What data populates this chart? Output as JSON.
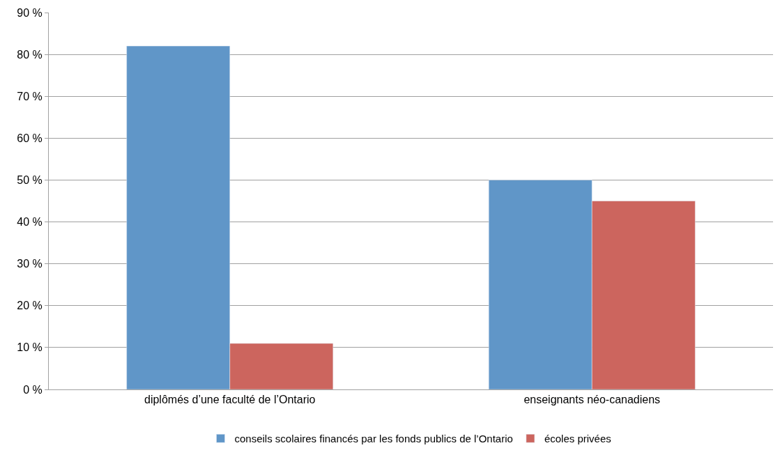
{
  "chart_data": {
    "type": "bar",
    "categories": [
      "diplômés d’une faculté de l’Ontario",
      "enseignants néo-canadiens"
    ],
    "series": [
      {
        "name": "conseils scolaires financés par les fonds publics de l’Ontario",
        "color": "#6096c8",
        "values": [
          82,
          50
        ]
      },
      {
        "name": "écoles privées",
        "color": "#cc655e",
        "values": [
          11,
          45
        ]
      }
    ],
    "ylim": [
      0,
      90
    ],
    "yticks": [
      {
        "value": 0,
        "label": "0 %"
      },
      {
        "value": 10,
        "label": "10 %"
      },
      {
        "value": 20,
        "label": "20 %"
      },
      {
        "value": 30,
        "label": "30 %"
      },
      {
        "value": 40,
        "label": "40 %"
      },
      {
        "value": 50,
        "label": "50 %"
      },
      {
        "value": 60,
        "label": "60 %"
      },
      {
        "value": 70,
        "label": "70 %"
      },
      {
        "value": 80,
        "label": "80 %"
      },
      {
        "value": 90,
        "label": "90 %"
      }
    ],
    "grid": "y",
    "legend": "bottom"
  }
}
